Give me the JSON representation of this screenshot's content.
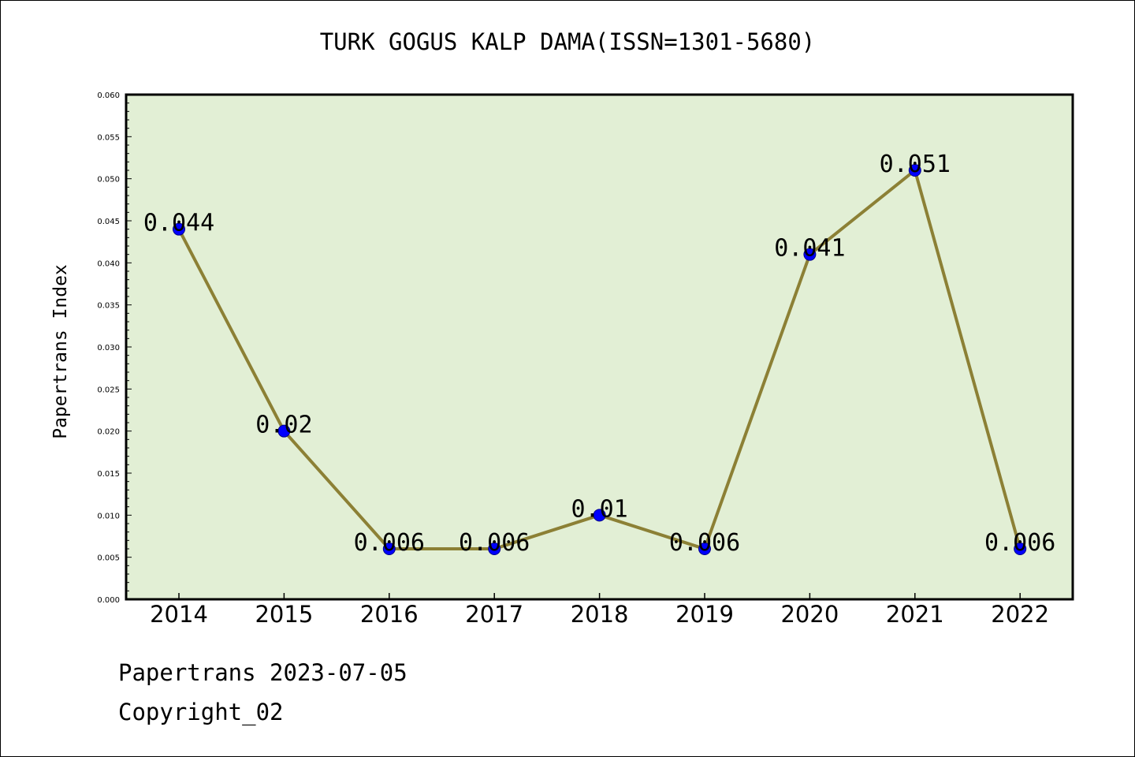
{
  "title": "TURK GOGUS KALP DAMA(ISSN=1301-5680)",
  "footer": {
    "line1": "Papertrans 2023-07-05",
    "line2": "Copyright_02"
  },
  "colors": {
    "plot_background": "#e2efd5",
    "line": "#8c8035",
    "marker": "#0000ff",
    "axis": "#000000"
  },
  "chart_data": {
    "type": "line",
    "title": "TURK GOGUS KALP DAMA(ISSN=1301-5680)",
    "xlabel": "",
    "ylabel": "Papertrans Index",
    "categories": [
      "2014",
      "2015",
      "2016",
      "2017",
      "2018",
      "2019",
      "2020",
      "2021",
      "2022"
    ],
    "series": [
      {
        "values": [
          0.044,
          0.02,
          0.006,
          0.006,
          0.01,
          0.006,
          0.041,
          0.051,
          0.006
        ],
        "labels": [
          "0.044",
          "0.02",
          "0.006",
          "0.006",
          "0.01",
          "0.006",
          "0.041",
          "0.051",
          "0.006"
        ]
      }
    ],
    "ylim": [
      0,
      0.06
    ],
    "yticks": [
      "0.000",
      "0.005",
      "0.010",
      "0.015",
      "0.020",
      "0.025",
      "0.030",
      "0.035",
      "0.040",
      "0.045",
      "0.050",
      "0.055",
      "0.060"
    ],
    "grid": false,
    "legend": "none"
  }
}
